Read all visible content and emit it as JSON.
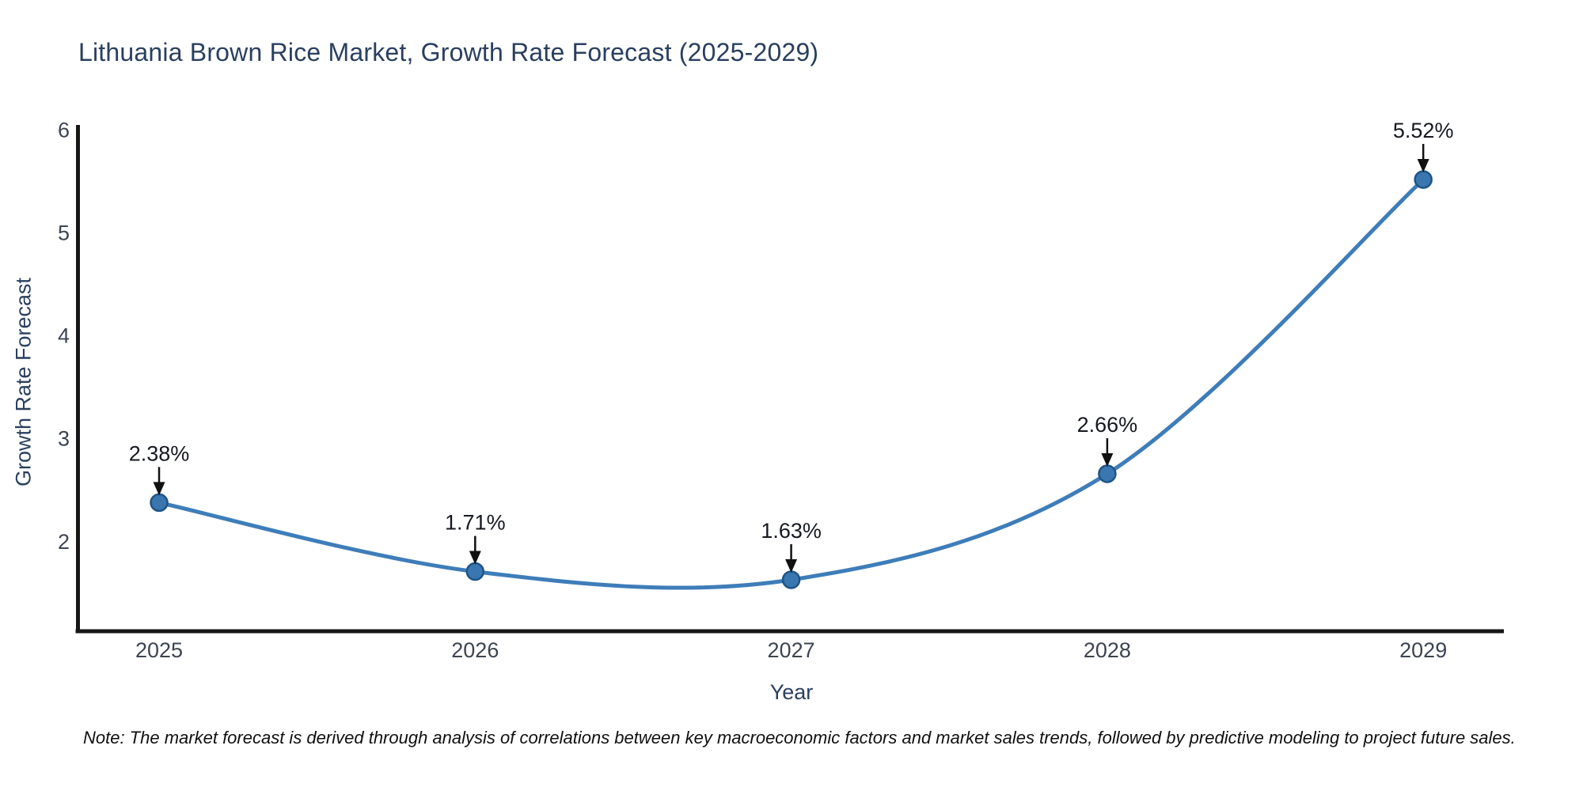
{
  "page": {
    "title": "Lithuania Brown Rice Market, Growth Rate Forecast (2025-2029)",
    "note": "Note: The market forecast is derived through analysis of correlations between key macroeconomic factors and market sales trends, followed by predictive modeling to project future sales."
  },
  "chart_data": {
    "type": "line",
    "title": "Lithuania Brown Rice Market, Growth Rate Forecast (2025-2029)",
    "x": [
      2025,
      2026,
      2027,
      2028,
      2029
    ],
    "categories": [
      "2025",
      "2026",
      "2027",
      "2028",
      "2029"
    ],
    "series": [
      {
        "name": "Growth Rate Forecast",
        "values": [
          2.38,
          1.71,
          1.63,
          2.66,
          5.52
        ],
        "point_labels": [
          "2.38%",
          "1.71%",
          "1.63%",
          "2.66%",
          "5.52%"
        ]
      }
    ],
    "xlabel": "Year",
    "ylabel": "Growth Rate Forecast",
    "yticks": [
      2,
      3,
      4,
      5,
      6
    ],
    "xlim": [
      2024.742,
      2029.255
    ],
    "ylim": [
      1.13,
      6.05
    ],
    "line_shape": "spline",
    "grid": false,
    "legend": "none",
    "colors": {
      "line": "#3e7db9",
      "marker_fill": "#3a76b0",
      "marker_edge": "#1e5586",
      "axis_line": "#161616",
      "tick_text": "#3d4451",
      "annotation_text": "#16191f",
      "arrow": "#111111",
      "title_text": "#2a3f5f"
    }
  }
}
